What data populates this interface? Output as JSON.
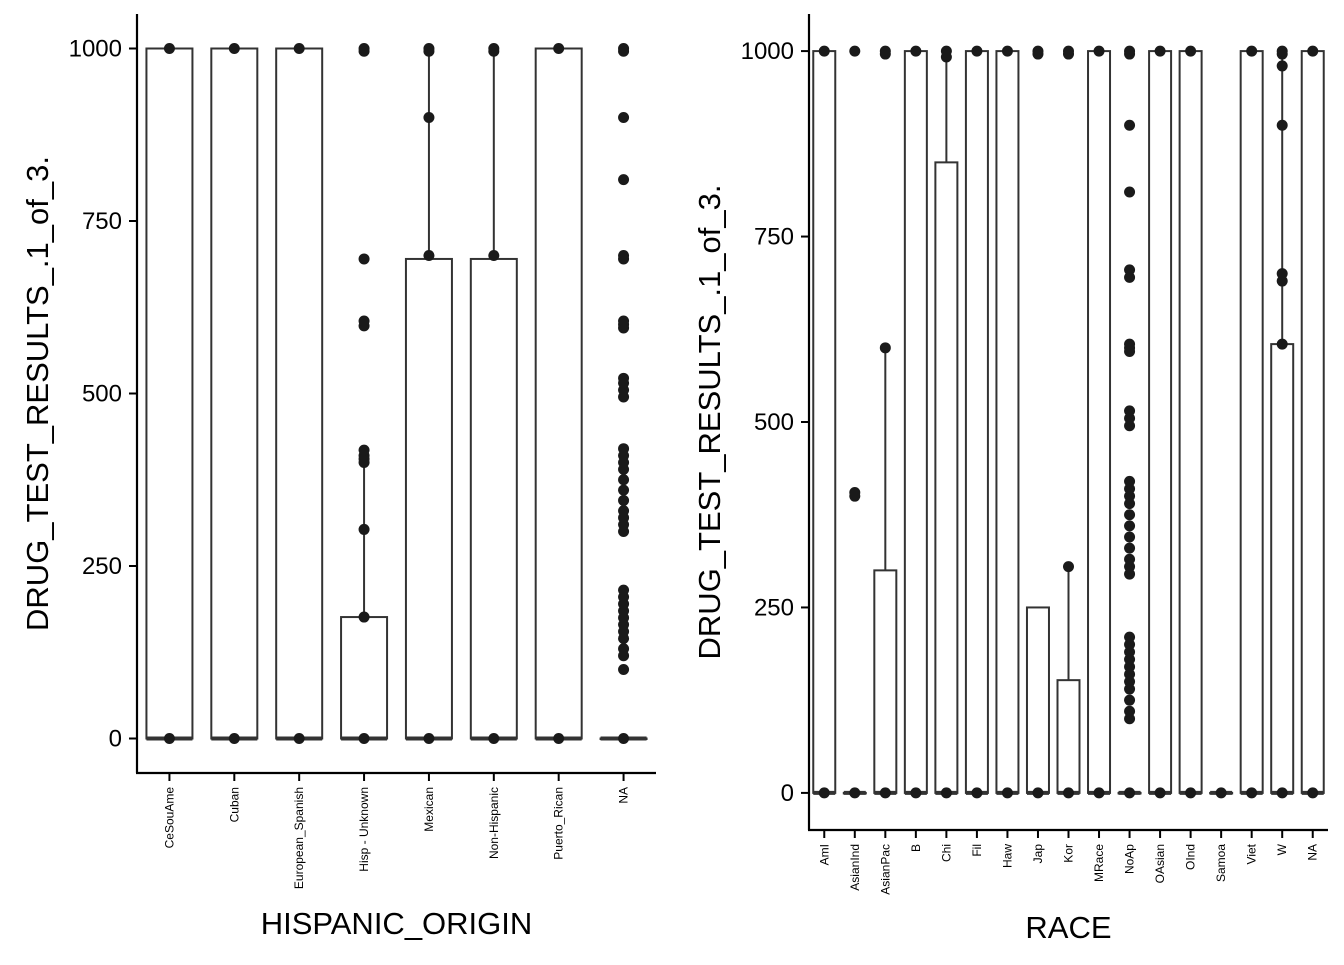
{
  "chart_data": [
    {
      "type": "box",
      "xlabel": "HISPANIC_ORIGIN",
      "ylabel": "DRUG_TEST_RESULTS_.1_of_3.",
      "ylim": [
        -50,
        1050
      ],
      "yticks": [
        0,
        250,
        500,
        750,
        1000
      ],
      "grid": false,
      "categories": [
        "CeSouAme",
        "Cuban",
        "European_Spanish",
        "Hisp - Unknown",
        "Mexican",
        "Non-Hispanic",
        "Puerto_Rican",
        "NA"
      ],
      "boxes": [
        {
          "lower": 0,
          "q1": 0,
          "median": 0,
          "q3": 1000,
          "upper": 1000,
          "outliers": [
            0,
            1000
          ]
        },
        {
          "lower": 0,
          "q1": 0,
          "median": 0,
          "q3": 1000,
          "upper": 1000,
          "outliers": [
            0,
            1000
          ]
        },
        {
          "lower": 0,
          "q1": 0,
          "median": 0,
          "q3": 1000,
          "upper": 1000,
          "outliers": [
            0,
            1000
          ]
        },
        {
          "lower": 0,
          "q1": 0,
          "median": 0,
          "q3": 176,
          "upper": 400,
          "outliers": [
            0,
            176,
            303,
            400,
            405,
            410,
            418,
            598,
            605,
            695,
            996,
            1000
          ]
        },
        {
          "lower": 0,
          "q1": 0,
          "median": 0,
          "q3": 695,
          "upper": 1000,
          "outliers": [
            0,
            700,
            900,
            996,
            1000
          ]
        },
        {
          "lower": 0,
          "q1": 0,
          "median": 0,
          "q3": 695,
          "upper": 1000,
          "outliers": [
            0,
            700,
            996,
            1000
          ]
        },
        {
          "lower": 0,
          "q1": 0,
          "median": 0,
          "q3": 1000,
          "upper": 1000,
          "outliers": [
            0,
            1000
          ]
        },
        {
          "lower": 0,
          "q1": 0,
          "median": 0,
          "q3": 0,
          "upper": 0,
          "outliers": [
            0,
            100,
            120,
            130,
            145,
            155,
            165,
            175,
            185,
            195,
            205,
            215,
            300,
            310,
            320,
            330,
            345,
            360,
            375,
            390,
            400,
            410,
            420,
            495,
            505,
            515,
            522,
            595,
            600,
            605,
            695,
            700,
            810,
            900,
            996,
            1000
          ]
        }
      ]
    },
    {
      "type": "box",
      "xlabel": "RACE",
      "ylabel": "DRUG_TEST_RESULTS_.1_of_3.",
      "ylim": [
        -50,
        1050
      ],
      "yticks": [
        0,
        250,
        500,
        750,
        1000
      ],
      "grid": false,
      "categories": [
        "AmI",
        "AsianInd",
        "AsianPac",
        "B",
        "Chi",
        "Fil",
        "Haw",
        "Jap",
        "Kor",
        "MRace",
        "NoAp",
        "OAsian",
        "OInd",
        "Samoa",
        "Viet",
        "W",
        "NA"
      ],
      "boxes": [
        {
          "lower": 0,
          "q1": 0,
          "median": 0,
          "q3": 1000,
          "upper": 1000,
          "outliers": [
            0,
            1000
          ]
        },
        {
          "lower": 0,
          "q1": 0,
          "median": 0,
          "q3": 0,
          "upper": 0,
          "outliers": [
            0,
            400,
            405,
            1000
          ]
        },
        {
          "lower": 0,
          "q1": 0,
          "median": 0,
          "q3": 300,
          "upper": 600,
          "outliers": [
            0,
            600,
            996,
            1000
          ]
        },
        {
          "lower": 0,
          "q1": 0,
          "median": 0,
          "q3": 1000,
          "upper": 1000,
          "outliers": [
            0,
            1000
          ]
        },
        {
          "lower": 0,
          "q1": 0,
          "median": 0,
          "q3": 850,
          "upper": 1000,
          "outliers": [
            0,
            992,
            1000
          ]
        },
        {
          "lower": 0,
          "q1": 0,
          "median": 0,
          "q3": 1000,
          "upper": 1000,
          "outliers": [
            0,
            1000
          ]
        },
        {
          "lower": 0,
          "q1": 0,
          "median": 0,
          "q3": 1000,
          "upper": 1000,
          "outliers": [
            0,
            1000
          ]
        },
        {
          "lower": 0,
          "q1": 0,
          "median": 0,
          "q3": 250,
          "upper": 250,
          "outliers": [
            0,
            996,
            1000
          ]
        },
        {
          "lower": 0,
          "q1": 0,
          "median": 0,
          "q3": 152,
          "upper": 305,
          "outliers": [
            0,
            305,
            996,
            1000
          ]
        },
        {
          "lower": 0,
          "q1": 0,
          "median": 0,
          "q3": 1000,
          "upper": 1000,
          "outliers": [
            0,
            1000
          ]
        },
        {
          "lower": 0,
          "q1": 0,
          "median": 0,
          "q3": 0,
          "upper": 0,
          "outliers": [
            0,
            100,
            110,
            125,
            140,
            150,
            160,
            170,
            180,
            190,
            200,
            210,
            295,
            305,
            315,
            330,
            345,
            360,
            375,
            390,
            400,
            410,
            420,
            495,
            505,
            515,
            595,
            600,
            605,
            695,
            705,
            810,
            900,
            996,
            1000
          ]
        },
        {
          "lower": 0,
          "q1": 0,
          "median": 0,
          "q3": 1000,
          "upper": 1000,
          "outliers": [
            0,
            1000
          ]
        },
        {
          "lower": 0,
          "q1": 0,
          "median": 0,
          "q3": 1000,
          "upper": 1000,
          "outliers": [
            0,
            1000
          ]
        },
        {
          "lower": 0,
          "q1": 0,
          "median": 0,
          "q3": 0,
          "upper": 0,
          "outliers": [
            0
          ]
        },
        {
          "lower": 0,
          "q1": 0,
          "median": 0,
          "q3": 1000,
          "upper": 1000,
          "outliers": [
            0,
            1000
          ]
        },
        {
          "lower": 0,
          "q1": 0,
          "median": 0,
          "q3": 605,
          "upper": 1000,
          "outliers": [
            0,
            605,
            690,
            700,
            900,
            980,
            996,
            1000
          ]
        },
        {
          "lower": 0,
          "q1": 0,
          "median": 0,
          "q3": 1000,
          "upper": 1000,
          "outliers": [
            0,
            1000
          ]
        }
      ]
    }
  ],
  "colors": {
    "box_fill": "#ffffff",
    "box_stroke": "#333333",
    "point": "#1a1a1a",
    "axis": "#000000"
  }
}
